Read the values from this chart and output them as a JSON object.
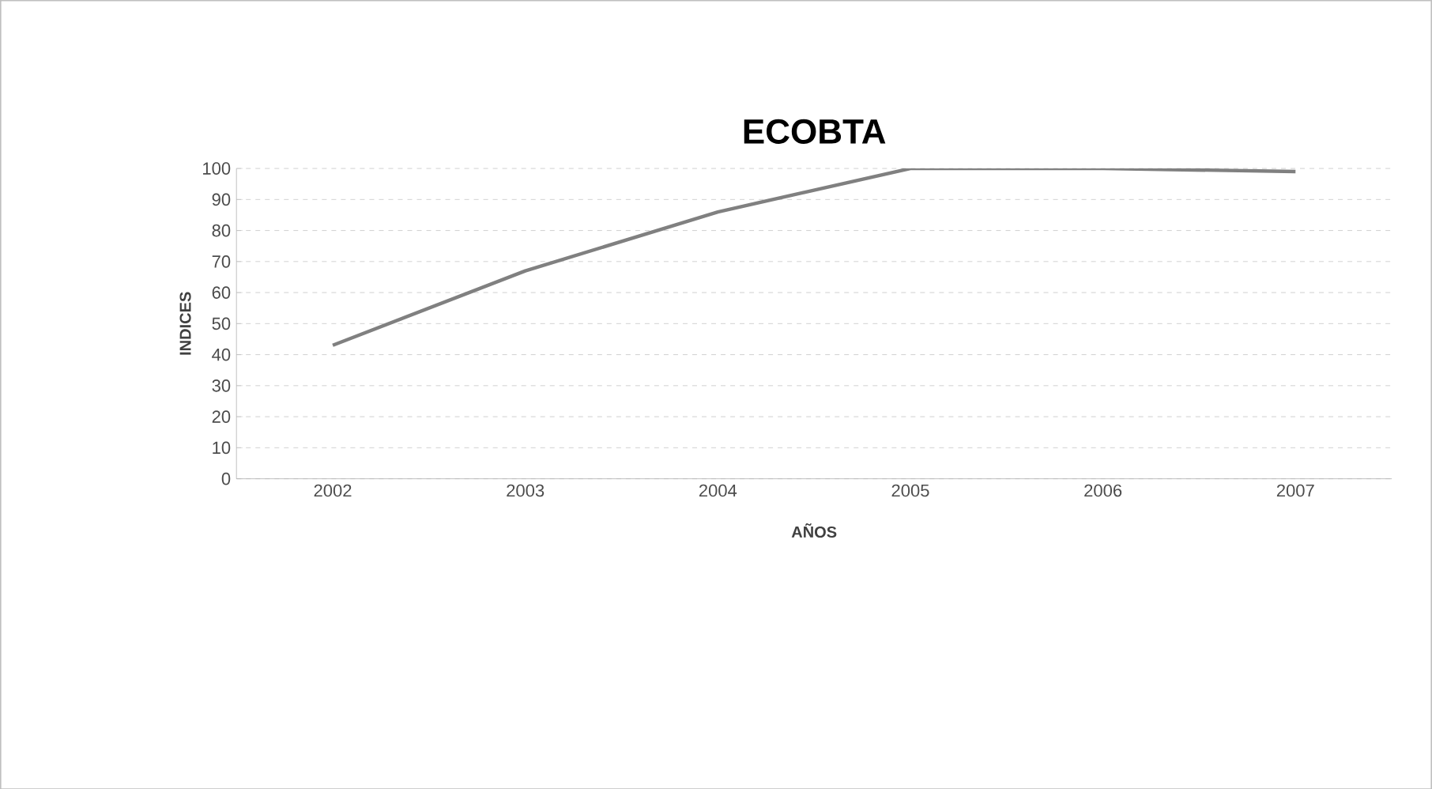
{
  "chart_data": {
    "type": "line",
    "title": "ECOBTA",
    "xlabel": "AÑOS",
    "ylabel": "INDICES",
    "categories": [
      "2002",
      "2003",
      "2004",
      "2005",
      "2006",
      "2007"
    ],
    "series": [
      {
        "color": "#808080",
        "values": [
          43,
          67,
          86,
          100,
          100,
          99
        ]
      }
    ],
    "ylim": [
      0,
      100
    ],
    "yticks": [
      0,
      10,
      20,
      30,
      40,
      50,
      60,
      70,
      80,
      90,
      100
    ],
    "grid": "y",
    "legend": false,
    "marker": "none",
    "line_style": "solid"
  }
}
